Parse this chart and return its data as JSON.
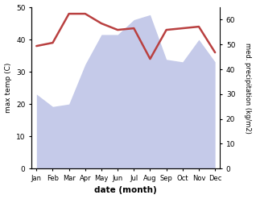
{
  "months": [
    "Jan",
    "Feb",
    "Mar",
    "Apr",
    "May",
    "Jun",
    "Jul",
    "Aug",
    "Sep",
    "Oct",
    "Nov",
    "Dec"
  ],
  "temperature": [
    38.0,
    39.0,
    48.0,
    48.0,
    45.0,
    43.0,
    43.5,
    34.0,
    43.0,
    43.5,
    44.0,
    36.0
  ],
  "precipitation": [
    30,
    25,
    26,
    42,
    54,
    54,
    60,
    62,
    44,
    43,
    52,
    43
  ],
  "temp_color": "#b94040",
  "precip_fill_color": "#c5cae9",
  "temp_ylim": [
    0,
    50
  ],
  "precip_ylim": [
    0,
    65
  ],
  "xlabel": "date (month)",
  "ylabel_left": "max temp (C)",
  "ylabel_right": "med. precipitation (kg/m2)",
  "temp_linewidth": 1.8,
  "yticks_left": [
    0,
    10,
    20,
    30,
    40,
    50
  ],
  "yticks_right": [
    0,
    10,
    20,
    30,
    40,
    50,
    60
  ]
}
